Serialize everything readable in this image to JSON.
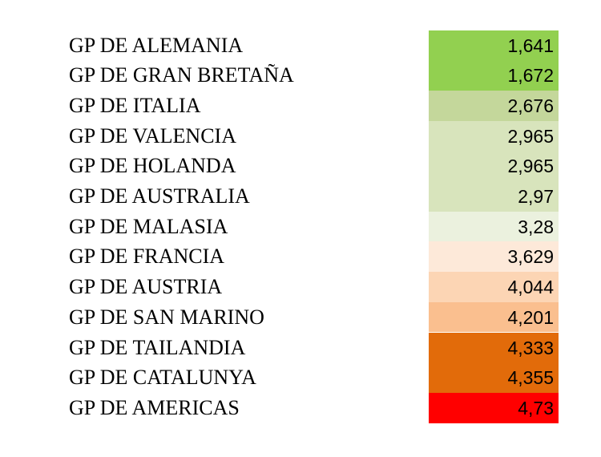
{
  "table": {
    "rows": [
      {
        "label": "GP DE ALEMANIA",
        "value": "1,641",
        "color": "#92d050"
      },
      {
        "label": "GP DE GRAN BRETAÑA",
        "value": "1,672",
        "color": "#92d050"
      },
      {
        "label": "GP DE ITALIA",
        "value": "2,676",
        "color": "#c4d79b"
      },
      {
        "label": "GP DE VALENCIA",
        "value": "2,965",
        "color": "#d8e4bc"
      },
      {
        "label": "GP DE HOLANDA",
        "value": "2,965",
        "color": "#d8e4bc"
      },
      {
        "label": "GP DE AUSTRALIA",
        "value": "2,97",
        "color": "#d8e4bc"
      },
      {
        "label": "GP DE MALASIA",
        "value": "3,28",
        "color": "#ebf1de"
      },
      {
        "label": "GP DE FRANCIA",
        "value": "3,629",
        "color": "#fde9d9"
      },
      {
        "label": "GP DE AUSTRIA",
        "value": "4,044",
        "color": "#fcd5b4"
      },
      {
        "label": "GP DE SAN MARINO",
        "value": "4,201",
        "color": "#fabf8f"
      },
      {
        "label": "GP DE TAILANDIA",
        "value": "4,333",
        "color": "#e26b0a"
      },
      {
        "label": "GP DE CATALUNYA",
        "value": "4,355",
        "color": "#e26b0a"
      },
      {
        "label": "GP DE AMERICAS",
        "value": "4,73",
        "color": "#ff0000"
      }
    ]
  }
}
